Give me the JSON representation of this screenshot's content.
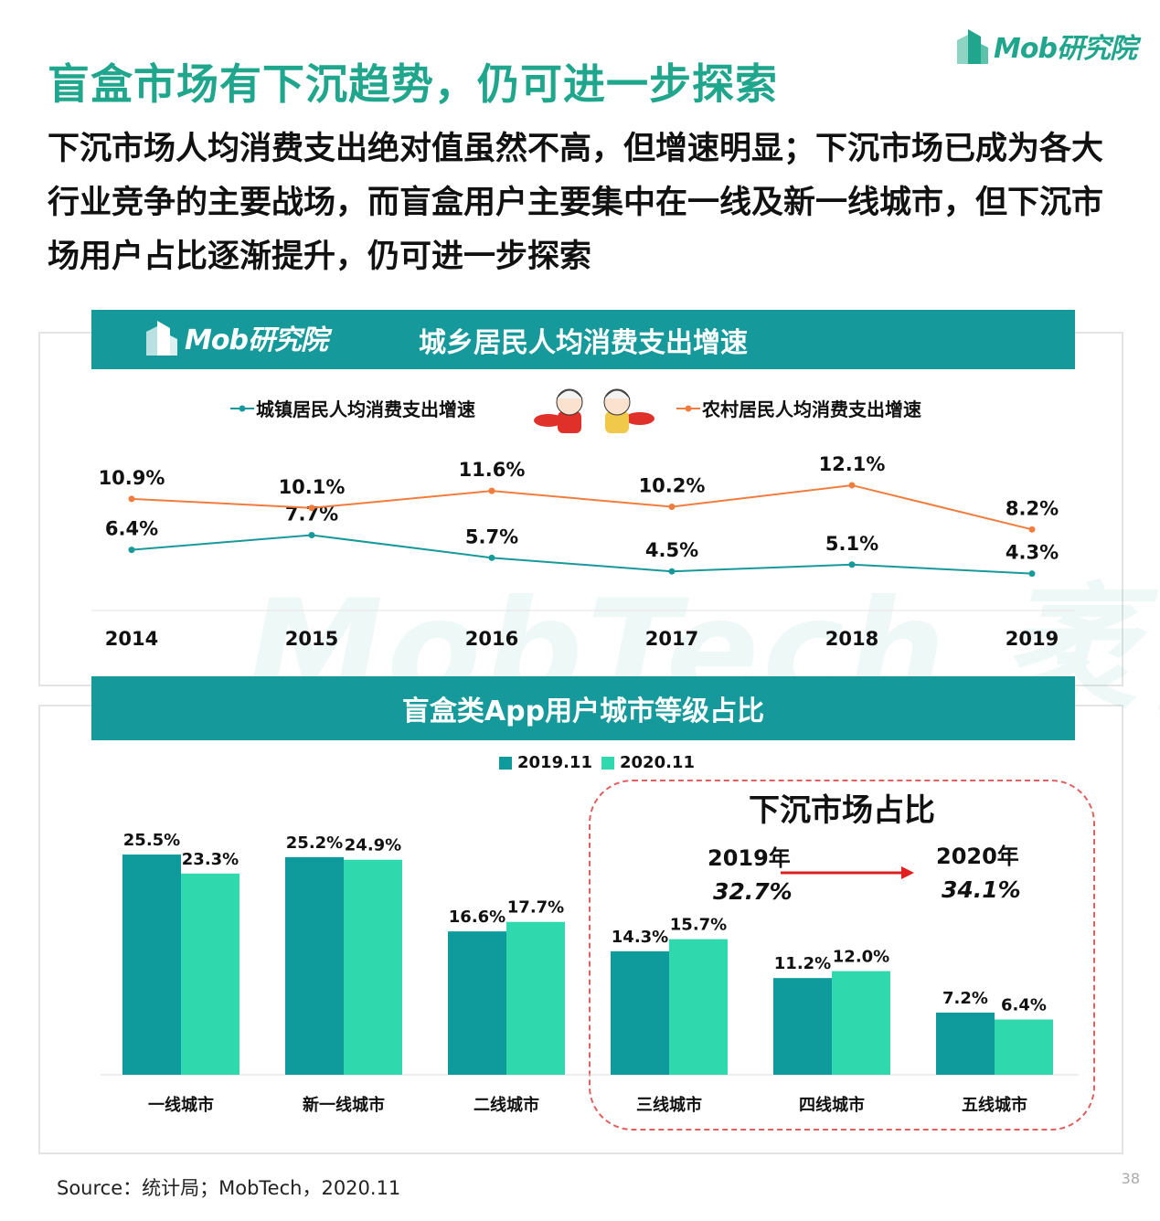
{
  "header": {
    "logo_text": "Mob研究院",
    "title": "盲盒市场有下沉趋势，仍可进一步探索",
    "subtitle": "下沉市场人均消费支出绝对值虽然不高，但增速明显；下沉市场已成为各大行业竞争的主要战场，而盲盒用户主要集中在一线及新一线城市，但下沉市场用户占比逐渐提升，仍可进一步探索"
  },
  "watermark": "MobTech 袤博",
  "colors": {
    "brand": "#1fa68c",
    "banner": "#16999b",
    "urban_line": "#17999b",
    "rural_line": "#f07c3e",
    "bar_2019": "#0f9a9c",
    "bar_2020": "#2fd8ad",
    "callout_border": "#e06060",
    "arrow": "#e02020"
  },
  "chart_data": [
    {
      "type": "line",
      "title": "城乡居民人均消费支出增速",
      "banner_logo": "Mob研究院",
      "x": [
        "2014",
        "2015",
        "2016",
        "2017",
        "2018",
        "2019"
      ],
      "series": [
        {
          "name": "城镇居民人均消费支出增速",
          "values": [
            6.4,
            7.7,
            5.7,
            4.5,
            5.1,
            4.3
          ],
          "labels": [
            "6.4%",
            "7.7%",
            "5.7%",
            "4.5%",
            "5.1%",
            "4.3%"
          ]
        },
        {
          "name": "农村居民人均消费支出增速",
          "values": [
            10.9,
            10.1,
            11.6,
            10.2,
            12.1,
            8.2
          ],
          "labels": [
            "10.9%",
            "10.1%",
            "11.6%",
            "10.2%",
            "12.1%",
            "8.2%"
          ]
        }
      ],
      "legend": "top-center"
    },
    {
      "type": "bar",
      "title": "盲盒类App用户城市等级占比",
      "categories": [
        "一线城市",
        "新一线城市",
        "二线城市",
        "三线城市",
        "四线城市",
        "五线城市"
      ],
      "series": [
        {
          "name": "2019.11",
          "values": [
            25.5,
            25.2,
            16.6,
            14.3,
            11.2,
            7.2
          ],
          "labels": [
            "25.5%",
            "25.2%",
            "16.6%",
            "14.3%",
            "11.2%",
            "7.2%"
          ]
        },
        {
          "name": "2020.11",
          "values": [
            23.3,
            24.9,
            17.7,
            15.7,
            12.0,
            6.4
          ],
          "labels": [
            "23.3%",
            "24.9%",
            "17.7%",
            "15.7%",
            "12.0%",
            "6.4%"
          ]
        }
      ],
      "legend": "top-center",
      "annotation": {
        "title": "下沉市场占比",
        "from_year": "2019年",
        "from_value": "32.7%",
        "to_year": "2020年",
        "to_value": "34.1%"
      }
    }
  ],
  "footer": {
    "source": "Source：统计局；MobTech，2020.11",
    "page_number": "38"
  }
}
